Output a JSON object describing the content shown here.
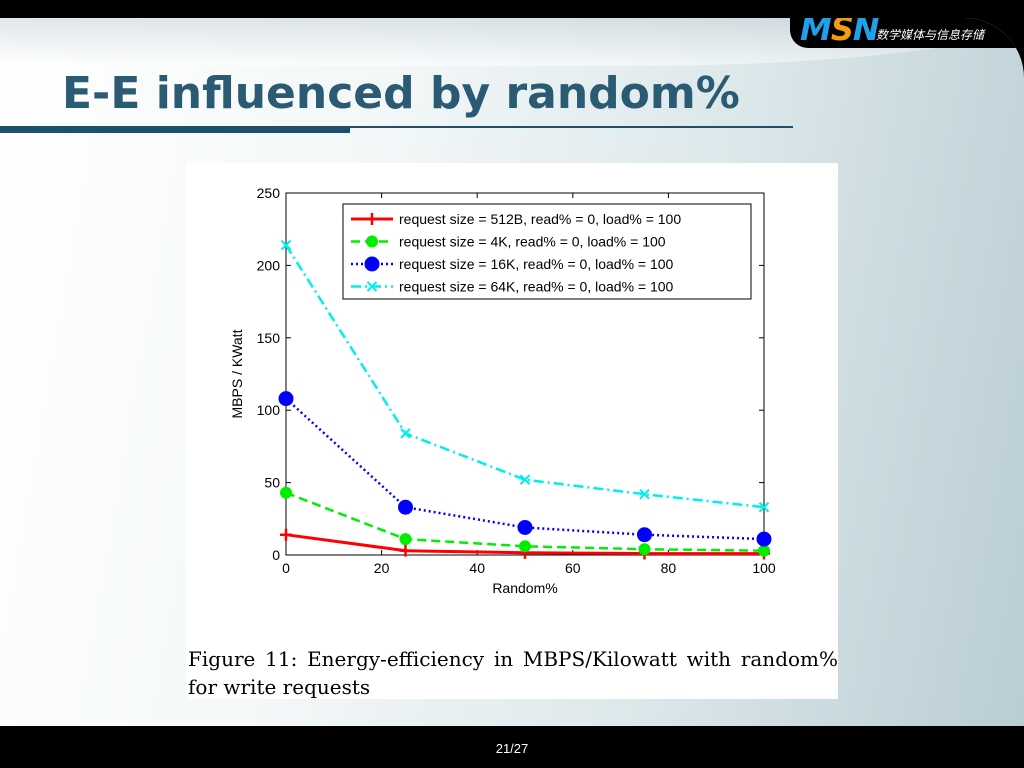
{
  "logo": {
    "m": "M",
    "s": "S",
    "n": "N",
    "subtitle": "数学媒体与信息存储"
  },
  "slide": {
    "title": "E-E influenced by random%",
    "page": "21/27"
  },
  "figure": {
    "caption": "Figure 11: Energy-efficiency in MBPS/Kilowatt with random% for write requests"
  },
  "chart_data": {
    "type": "line",
    "xlabel": "Random%",
    "ylabel": "MBPS / KWatt",
    "xlim": [
      0,
      100
    ],
    "ylim": [
      0,
      250
    ],
    "xticks": [
      0,
      20,
      40,
      60,
      80,
      100
    ],
    "yticks": [
      0,
      50,
      100,
      150,
      200,
      250
    ],
    "x": [
      0,
      25,
      50,
      75,
      100
    ],
    "legend_position": "top-right",
    "grid": false,
    "series": [
      {
        "name": "request size = 512B, read% = 0, load% = 100",
        "values": [
          14,
          3,
          1.5,
          1,
          1
        ],
        "color": "#ff0000",
        "dash": "solid",
        "marker": "plus"
      },
      {
        "name": "request size = 4K, read% = 0, load% = 100",
        "values": [
          43,
          11,
          6,
          4,
          3
        ],
        "color": "#00ee00",
        "dash": "dashed",
        "marker": "circle"
      },
      {
        "name": "request size = 16K, read% = 0, load% = 100",
        "values": [
          108,
          33,
          19,
          14,
          11
        ],
        "color": "#0000ff",
        "dash": "dotted",
        "marker": "circle-large"
      },
      {
        "name": "request size = 64K, read% = 0, load% = 100",
        "values": [
          214,
          84,
          52,
          42,
          33
        ],
        "color": "#00eeee",
        "dash": "dashdot",
        "marker": "x"
      }
    ]
  }
}
